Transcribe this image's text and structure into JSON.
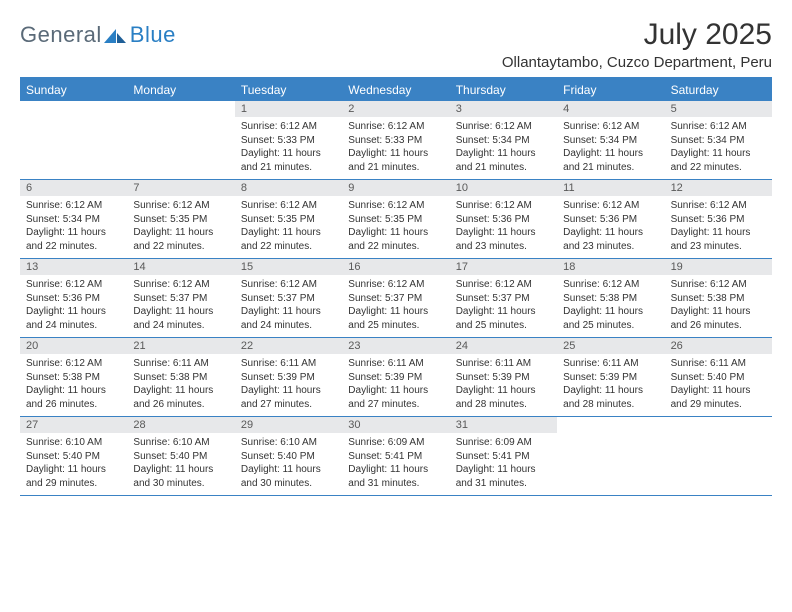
{
  "logo": {
    "text1": "General",
    "text2": "Blue"
  },
  "title": "July 2025",
  "location": "Ollantaytambo, Cuzco Department, Peru",
  "colors": {
    "header_bg": "#3a82c4",
    "header_text": "#ffffff",
    "daynum_bg": "#e7e8ea",
    "daynum_text": "#595959",
    "body_text": "#333333",
    "logo_gray": "#5a6a78",
    "logo_blue": "#2a7fc4",
    "border": "#3a82c4",
    "page_bg": "#ffffff"
  },
  "typography": {
    "title_fontsize": 30,
    "location_fontsize": 15,
    "header_fontsize": 12,
    "daynum_fontsize": 11,
    "body_fontsize": 10
  },
  "layout": {
    "columns": 7,
    "rows": 5,
    "leading_blanks": 2
  },
  "dayNames": [
    "Sunday",
    "Monday",
    "Tuesday",
    "Wednesday",
    "Thursday",
    "Friday",
    "Saturday"
  ],
  "weeks": [
    [
      null,
      null,
      {
        "n": "1",
        "sunrise": "6:12 AM",
        "sunset": "5:33 PM",
        "dh": "11",
        "dm": "21"
      },
      {
        "n": "2",
        "sunrise": "6:12 AM",
        "sunset": "5:33 PM",
        "dh": "11",
        "dm": "21"
      },
      {
        "n": "3",
        "sunrise": "6:12 AM",
        "sunset": "5:34 PM",
        "dh": "11",
        "dm": "21"
      },
      {
        "n": "4",
        "sunrise": "6:12 AM",
        "sunset": "5:34 PM",
        "dh": "11",
        "dm": "21"
      },
      {
        "n": "5",
        "sunrise": "6:12 AM",
        "sunset": "5:34 PM",
        "dh": "11",
        "dm": "22"
      }
    ],
    [
      {
        "n": "6",
        "sunrise": "6:12 AM",
        "sunset": "5:34 PM",
        "dh": "11",
        "dm": "22"
      },
      {
        "n": "7",
        "sunrise": "6:12 AM",
        "sunset": "5:35 PM",
        "dh": "11",
        "dm": "22"
      },
      {
        "n": "8",
        "sunrise": "6:12 AM",
        "sunset": "5:35 PM",
        "dh": "11",
        "dm": "22"
      },
      {
        "n": "9",
        "sunrise": "6:12 AM",
        "sunset": "5:35 PM",
        "dh": "11",
        "dm": "22"
      },
      {
        "n": "10",
        "sunrise": "6:12 AM",
        "sunset": "5:36 PM",
        "dh": "11",
        "dm": "23"
      },
      {
        "n": "11",
        "sunrise": "6:12 AM",
        "sunset": "5:36 PM",
        "dh": "11",
        "dm": "23"
      },
      {
        "n": "12",
        "sunrise": "6:12 AM",
        "sunset": "5:36 PM",
        "dh": "11",
        "dm": "23"
      }
    ],
    [
      {
        "n": "13",
        "sunrise": "6:12 AM",
        "sunset": "5:36 PM",
        "dh": "11",
        "dm": "24"
      },
      {
        "n": "14",
        "sunrise": "6:12 AM",
        "sunset": "5:37 PM",
        "dh": "11",
        "dm": "24"
      },
      {
        "n": "15",
        "sunrise": "6:12 AM",
        "sunset": "5:37 PM",
        "dh": "11",
        "dm": "24"
      },
      {
        "n": "16",
        "sunrise": "6:12 AM",
        "sunset": "5:37 PM",
        "dh": "11",
        "dm": "25"
      },
      {
        "n": "17",
        "sunrise": "6:12 AM",
        "sunset": "5:37 PM",
        "dh": "11",
        "dm": "25"
      },
      {
        "n": "18",
        "sunrise": "6:12 AM",
        "sunset": "5:38 PM",
        "dh": "11",
        "dm": "25"
      },
      {
        "n": "19",
        "sunrise": "6:12 AM",
        "sunset": "5:38 PM",
        "dh": "11",
        "dm": "26"
      }
    ],
    [
      {
        "n": "20",
        "sunrise": "6:12 AM",
        "sunset": "5:38 PM",
        "dh": "11",
        "dm": "26"
      },
      {
        "n": "21",
        "sunrise": "6:11 AM",
        "sunset": "5:38 PM",
        "dh": "11",
        "dm": "26"
      },
      {
        "n": "22",
        "sunrise": "6:11 AM",
        "sunset": "5:39 PM",
        "dh": "11",
        "dm": "27"
      },
      {
        "n": "23",
        "sunrise": "6:11 AM",
        "sunset": "5:39 PM",
        "dh": "11",
        "dm": "27"
      },
      {
        "n": "24",
        "sunrise": "6:11 AM",
        "sunset": "5:39 PM",
        "dh": "11",
        "dm": "28"
      },
      {
        "n": "25",
        "sunrise": "6:11 AM",
        "sunset": "5:39 PM",
        "dh": "11",
        "dm": "28"
      },
      {
        "n": "26",
        "sunrise": "6:11 AM",
        "sunset": "5:40 PM",
        "dh": "11",
        "dm": "29"
      }
    ],
    [
      {
        "n": "27",
        "sunrise": "6:10 AM",
        "sunset": "5:40 PM",
        "dh": "11",
        "dm": "29"
      },
      {
        "n": "28",
        "sunrise": "6:10 AM",
        "sunset": "5:40 PM",
        "dh": "11",
        "dm": "30"
      },
      {
        "n": "29",
        "sunrise": "6:10 AM",
        "sunset": "5:40 PM",
        "dh": "11",
        "dm": "30"
      },
      {
        "n": "30",
        "sunrise": "6:09 AM",
        "sunset": "5:41 PM",
        "dh": "11",
        "dm": "31"
      },
      {
        "n": "31",
        "sunrise": "6:09 AM",
        "sunset": "5:41 PM",
        "dh": "11",
        "dm": "31"
      },
      null,
      null
    ]
  ]
}
